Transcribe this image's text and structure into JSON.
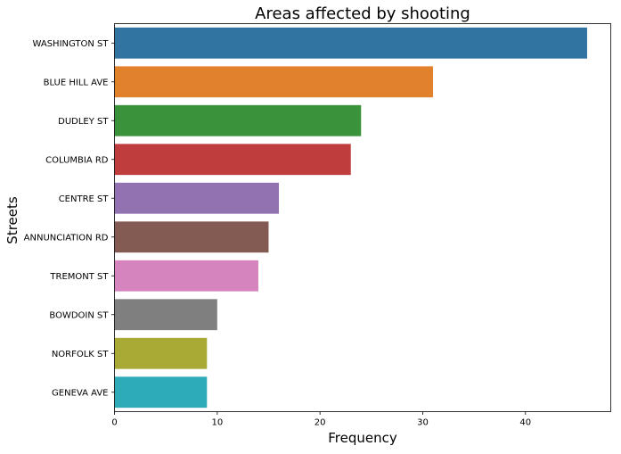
{
  "chart_data": {
    "type": "bar",
    "orientation": "horizontal",
    "title": "Areas affected by shooting",
    "xlabel": "Frequency",
    "ylabel": "Streets",
    "xlim": [
      0,
      48.3
    ],
    "xticks": [
      0,
      10,
      20,
      30,
      40
    ],
    "grid": false,
    "categories": [
      "WASHINGTON ST",
      "BLUE HILL AVE",
      "DUDLEY ST",
      "COLUMBIA RD",
      "CENTRE ST",
      "ANNUNCIATION RD",
      "TREMONT ST",
      "BOWDOIN ST",
      "NORFOLK ST",
      "GENEVA AVE"
    ],
    "values": [
      46,
      31,
      24,
      23,
      16,
      15,
      14,
      10,
      9,
      9
    ],
    "colors": [
      "#3274a1",
      "#e1812c",
      "#3a923a",
      "#c03d3e",
      "#9372b2",
      "#845b53",
      "#d684bd",
      "#7f7f7f",
      "#a9aa35",
      "#2eabb8"
    ]
  }
}
